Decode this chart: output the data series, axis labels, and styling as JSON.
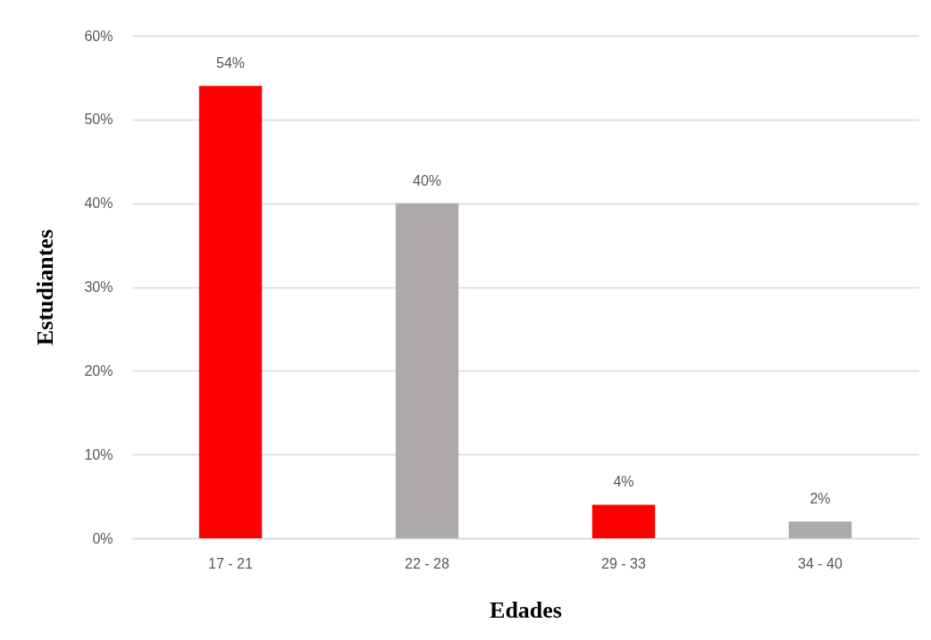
{
  "chart_data": {
    "type": "bar",
    "xlabel": "Edades",
    "ylabel": "Estudiantes",
    "categories": [
      "17 - 21",
      "22 - 28",
      "29 - 33",
      "34 - 40"
    ],
    "values": [
      54,
      40,
      4,
      2
    ],
    "colors": [
      "#ff0000",
      "#aeaaaa",
      "#ff0000",
      "#aeaaaa"
    ],
    "value_labels": [
      "54%",
      "40%",
      "4%",
      "2%"
    ],
    "ylim": [
      0,
      60
    ],
    "yticks": [
      {
        "value": 0,
        "label": "0%"
      },
      {
        "value": 10,
        "label": "10%"
      },
      {
        "value": 20,
        "label": "20%"
      },
      {
        "value": 30,
        "label": "30%"
      },
      {
        "value": 40,
        "label": "40%"
      },
      {
        "value": 50,
        "label": "50%"
      },
      {
        "value": 60,
        "label": "60%"
      }
    ],
    "grid": "y"
  }
}
